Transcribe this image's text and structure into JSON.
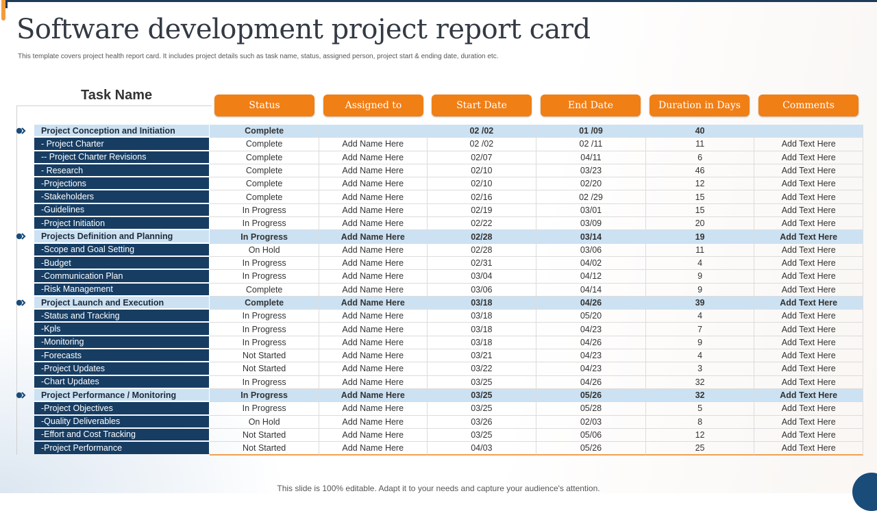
{
  "title": "Software development project report card",
  "subtitle": "This template covers project health report card. It includes project details such as task name,  status, assigned person, project start & ending date, duration etc.",
  "table": {
    "task_header": "Task Name",
    "columns": [
      "Status",
      "Assigned to",
      "Start Date",
      "End Date",
      "Duration in Days",
      "Comments"
    ],
    "rows": [
      {
        "name": "Project Conception and Initiation",
        "status": "Complete",
        "assigned": "",
        "start": "02 /02",
        "end": "01 /09",
        "duration": "40",
        "comments": "",
        "phase": true
      },
      {
        "name": "- Project Charter",
        "status": "Complete",
        "assigned": "Add Name Here",
        "start": "02 /02",
        "end": "02 /11",
        "duration": "11",
        "comments": "Add Text Here",
        "phase": false
      },
      {
        "name": "-- Project Charter Revisions",
        "status": "Complete",
        "assigned": "Add Name Here",
        "start": "02/07",
        "end": "04/11",
        "duration": "6",
        "comments": "Add Text Here",
        "phase": false
      },
      {
        "name": "- Research",
        "status": "Complete",
        "assigned": "Add Name Here",
        "start": "02/10",
        "end": "03/23",
        "duration": "46",
        "comments": "Add Text Here",
        "phase": false
      },
      {
        "name": "-Projections",
        "status": "Complete",
        "assigned": "Add Name Here",
        "start": "02/10",
        "end": "02/20",
        "duration": "12",
        "comments": "Add Text Here",
        "phase": false
      },
      {
        "name": "-Stakeholders",
        "status": "Complete",
        "assigned": "Add Name Here",
        "start": "02/16",
        "end": "02 /29",
        "duration": "15",
        "comments": "Add Text Here",
        "phase": false
      },
      {
        "name": "-Guidelines",
        "status": "In Progress",
        "assigned": "Add Name Here",
        "start": "02/19",
        "end": "03/01",
        "duration": "15",
        "comments": "Add Text Here",
        "phase": false
      },
      {
        "name": "-Project Initiation",
        "status": "In Progress",
        "assigned": "Add Name Here",
        "start": "02/22",
        "end": "03/09",
        "duration": "20",
        "comments": "Add Text Here",
        "phase": false
      },
      {
        "name": "Projects Definition and Planning",
        "status": "In Progress",
        "assigned": "Add Name Here",
        "start": "02/28",
        "end": "03/14",
        "duration": "19",
        "comments": "Add Text Here",
        "phase": true
      },
      {
        "name": "-Scope and Goal Setting",
        "status": "On Hold",
        "assigned": "Add Name Here",
        "start": "02/28",
        "end": "03/06",
        "duration": "11",
        "comments": "Add Text Here",
        "phase": false
      },
      {
        "name": "-Budget",
        "status": "In Progress",
        "assigned": "Add Name Here",
        "start": "02/31",
        "end": "04/02",
        "duration": "4",
        "comments": "Add Text Here",
        "phase": false
      },
      {
        "name": "-Communication Plan",
        "status": "In Progress",
        "assigned": "Add Name Here",
        "start": "03/04",
        "end": "04/12",
        "duration": "9",
        "comments": "Add Text Here",
        "phase": false
      },
      {
        "name": "-Risk Management",
        "status": "Complete",
        "assigned": "Add Name Here",
        "start": "03/06",
        "end": "04/14",
        "duration": "9",
        "comments": "Add Text Here",
        "phase": false
      },
      {
        "name": "Project Launch and Execution",
        "status": "Complete",
        "assigned": "Add Name Here",
        "start": "03/18",
        "end": "04/26",
        "duration": "39",
        "comments": "Add Text Here",
        "phase": true
      },
      {
        "name": "-Status and Tracking",
        "status": "In Progress",
        "assigned": "Add Name Here",
        "start": "03/18",
        "end": "05/20",
        "duration": "4",
        "comments": "Add Text Here",
        "phase": false
      },
      {
        "name": "-Kpls",
        "status": "In Progress",
        "assigned": "Add Name Here",
        "start": "03/18",
        "end": "04/23",
        "duration": "7",
        "comments": "Add Text Here",
        "phase": false
      },
      {
        "name": "-Monitoring",
        "status": "In Progress",
        "assigned": "Add Name Here",
        "start": "03/18",
        "end": "04/26",
        "duration": "9",
        "comments": "Add Text Here",
        "phase": false
      },
      {
        "name": "-Forecasts",
        "status": "Not Started",
        "assigned": "Add Name Here",
        "start": "03/21",
        "end": "04/23",
        "duration": "4",
        "comments": "Add Text Here",
        "phase": false
      },
      {
        "name": "-Project Updates",
        "status": "Not Started",
        "assigned": "Add Name Here",
        "start": "03/22",
        "end": "04/23",
        "duration": "3",
        "comments": "Add Text Here",
        "phase": false
      },
      {
        "name": "-Chart Updates",
        "status": "In Progress",
        "assigned": "Add Name Here",
        "start": "03/25",
        "end": "04/26",
        "duration": "32",
        "comments": "Add Text Here",
        "phase": false
      },
      {
        "name": "Project Performance / Monitoring",
        "status": "In Progress",
        "assigned": "Add Name Here",
        "start": "03/25",
        "end": "05/26",
        "duration": "32",
        "comments": "Add Text Here",
        "phase": true
      },
      {
        "name": "-Project Objectives",
        "status": "In Progress",
        "assigned": "Add Name Here",
        "start": "03/25",
        "end": "05/28",
        "duration": "5",
        "comments": "Add Text Here",
        "phase": false
      },
      {
        "name": "-Quality Deliverables",
        "status": "On Hold",
        "assigned": "Add Name Here",
        "start": "03/26",
        "end": "02/03",
        "duration": "8",
        "comments": "Add Text Here",
        "phase": false
      },
      {
        "name": "-Effort and Cost Tracking",
        "status": "Not Started",
        "assigned": "Add Name Here",
        "start": "03/25",
        "end": "05/06",
        "duration": "12",
        "comments": "Add Text Here",
        "phase": false
      },
      {
        "name": "-Project Performance",
        "status": "Not Started",
        "assigned": "Add Name Here",
        "start": "04/03",
        "end": "05/26",
        "duration": "25",
        "comments": "Add Text Here",
        "phase": false
      }
    ]
  },
  "footer": "This slide is 100% editable. Adapt it to your needs and capture your audience's attention.",
  "colors": {
    "accent": "#f07f16",
    "navy": "#173d63",
    "phase_row": "#cce2f3"
  },
  "icons": {
    "phase_marker": "double-chevron-right-icon"
  }
}
